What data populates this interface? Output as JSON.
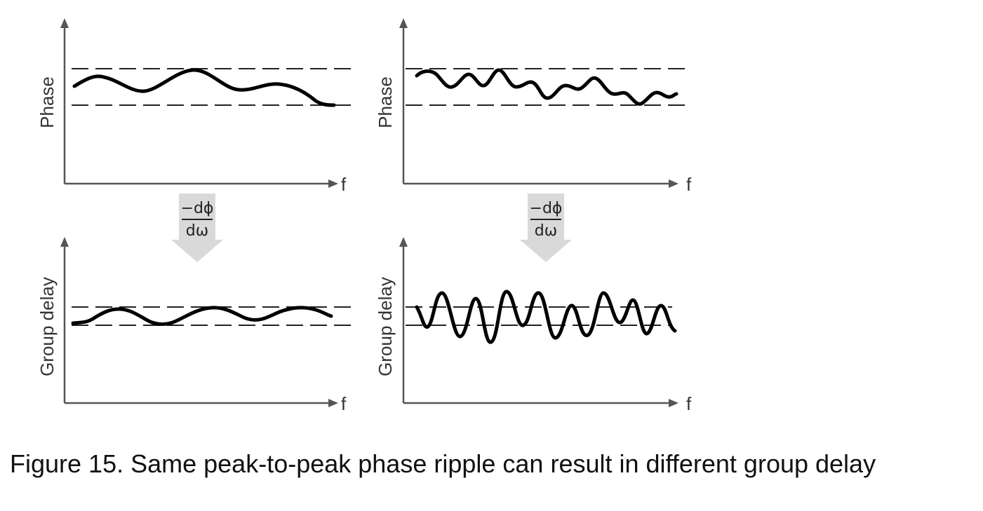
{
  "caption": "Figure 15. Same peak-to-peak phase ripple can result in different group delay",
  "axis_labels": {
    "phase": "Phase",
    "group_delay": "Group delay",
    "frequency": "f"
  },
  "derivative": {
    "numerator": "−dϕ",
    "denominator": "dω"
  },
  "colors": {
    "axis": "#555555",
    "curve": "#000000",
    "arrow_fill": "#d9d9d9",
    "text": "#333333"
  },
  "panels": [
    {
      "id": "left-phase",
      "quantity": "Phase",
      "ripple": "slow, low frequency"
    },
    {
      "id": "right-phase",
      "quantity": "Phase",
      "ripple": "fast, high frequency"
    },
    {
      "id": "left-group-delay",
      "quantity": "Group delay",
      "ripple": "small"
    },
    {
      "id": "right-group-delay",
      "quantity": "Group delay",
      "ripple": "large"
    }
  ]
}
